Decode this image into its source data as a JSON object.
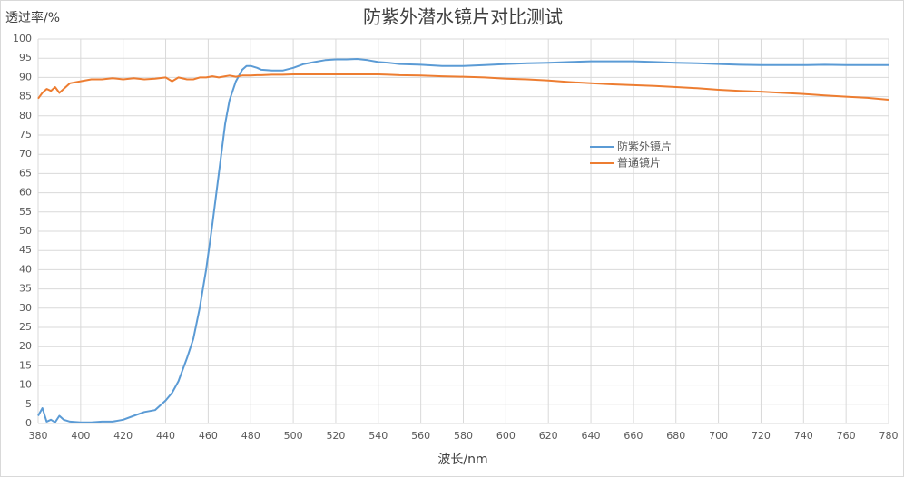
{
  "chart_data": {
    "type": "line",
    "title": "防紫外潜水镜片对比测试",
    "xlabel": "波长/nm",
    "ylabel": "透过率/%",
    "x": [
      380,
      382,
      384,
      386,
      388,
      390,
      392,
      395,
      400,
      405,
      410,
      415,
      420,
      425,
      430,
      435,
      440,
      443,
      446,
      450,
      453,
      456,
      459,
      462,
      465,
      468,
      470,
      473,
      476,
      478,
      480,
      483,
      485,
      490,
      495,
      500,
      505,
      510,
      515,
      520,
      525,
      530,
      535,
      540,
      545,
      550,
      560,
      570,
      580,
      590,
      600,
      610,
      620,
      630,
      640,
      650,
      660,
      670,
      680,
      690,
      700,
      710,
      720,
      730,
      740,
      750,
      760,
      770,
      780
    ],
    "series": [
      {
        "name": "防紫外镜片",
        "color": "#5b9bd5",
        "values": [
          2,
          4,
          0.5,
          1,
          0.3,
          2,
          1,
          0.5,
          0.3,
          0.3,
          0.5,
          0.5,
          1,
          2,
          3,
          3.5,
          6,
          8,
          11,
          17,
          22,
          30,
          40,
          52,
          65,
          78,
          84,
          89,
          92,
          93,
          93,
          92.5,
          92,
          91.8,
          91.8,
          92.5,
          93.5,
          94,
          94.5,
          94.7,
          94.7,
          94.8,
          94.5,
          94,
          93.8,
          93.5,
          93.3,
          93,
          93,
          93.2,
          93.5,
          93.7,
          93.8,
          94,
          94.2,
          94.2,
          94.2,
          94,
          93.8,
          93.7,
          93.5,
          93.3,
          93.2,
          93.2,
          93.2,
          93.3,
          93.2,
          93.2,
          93.2
        ]
      },
      {
        "name": "普通镜片",
        "color": "#ed7d31",
        "values": [
          84.5,
          86,
          87,
          86.5,
          87.5,
          86,
          87,
          88.5,
          89,
          89.5,
          89.5,
          89.8,
          89.5,
          89.8,
          89.5,
          89.7,
          90,
          89,
          90,
          89.5,
          89.5,
          90,
          90,
          90.3,
          90,
          90.3,
          90.5,
          90.2,
          90.5,
          90.5,
          90.5,
          90.6,
          90.6,
          90.7,
          90.7,
          90.8,
          90.8,
          90.8,
          90.8,
          90.8,
          90.8,
          90.8,
          90.8,
          90.8,
          90.7,
          90.6,
          90.5,
          90.3,
          90.2,
          90,
          89.7,
          89.5,
          89.2,
          88.8,
          88.5,
          88.2,
          88,
          87.8,
          87.5,
          87.2,
          86.8,
          86.5,
          86.3,
          86,
          85.7,
          85.3,
          85,
          84.7,
          84.2
        ]
      }
    ],
    "xlim": [
      380,
      780
    ],
    "xticks": [
      380,
      400,
      420,
      440,
      460,
      480,
      500,
      520,
      540,
      560,
      580,
      600,
      620,
      640,
      660,
      680,
      700,
      720,
      740,
      760,
      780
    ],
    "ylim": [
      0,
      100
    ],
    "yticks": [
      0,
      5,
      10,
      15,
      20,
      25,
      30,
      35,
      40,
      45,
      50,
      55,
      60,
      65,
      70,
      75,
      80,
      85,
      90,
      95,
      100
    ],
    "grid": true,
    "legend": "right"
  }
}
